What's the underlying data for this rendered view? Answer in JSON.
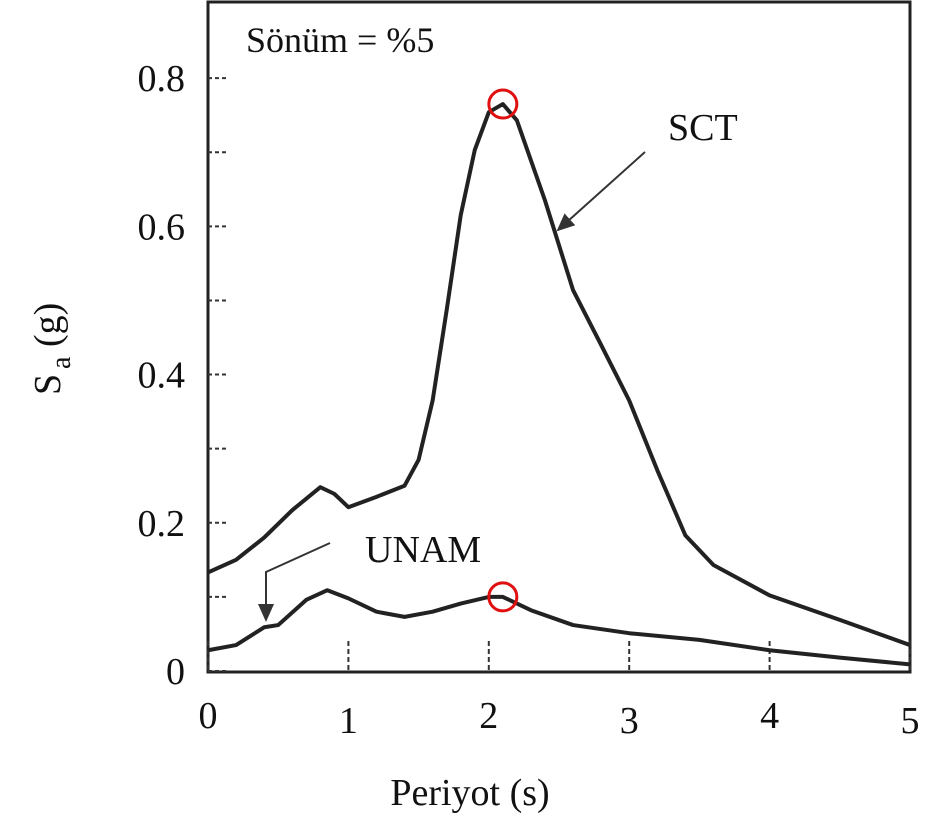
{
  "chart_data": {
    "type": "line",
    "x_label": "Periyot (s)",
    "y_label": {
      "text": "S",
      "subscript": "a",
      "unit": "(g)"
    },
    "annotations": [
      "Sönüm = %5"
    ],
    "xlim": [
      0,
      5
    ],
    "xticks": [
      0,
      1,
      2,
      3,
      4,
      5
    ],
    "ylim": [
      0,
      0.9
    ],
    "yticks": [
      0,
      0.2,
      0.4,
      0.6,
      0.8
    ],
    "yminor": [
      0.1,
      0.3,
      0.5,
      0.7
    ],
    "series": [
      {
        "name": "SCT",
        "color": "#222222",
        "label_color": "#1f3fc0",
        "x": [
          0,
          0.2,
          0.4,
          0.6,
          0.8,
          0.9,
          1.0,
          1.2,
          1.4,
          1.5,
          1.6,
          1.7,
          1.8,
          1.9,
          2.0,
          2.1,
          2.2,
          2.4,
          2.6,
          2.8,
          3.0,
          3.2,
          3.4,
          3.6,
          4.0,
          4.5,
          5.0
        ],
        "values": [
          0.133,
          0.15,
          0.18,
          0.217,
          0.248,
          0.239,
          0.221,
          0.235,
          0.25,
          0.285,
          0.365,
          0.487,
          0.615,
          0.703,
          0.754,
          0.765,
          0.743,
          0.635,
          0.514,
          0.44,
          0.365,
          0.271,
          0.183,
          0.143,
          0.102,
          0.069,
          0.035
        ],
        "highlight_index": 15
      },
      {
        "name": "UNAM",
        "color": "#222222",
        "label_color": "#1f3fc0",
        "x": [
          0,
          0.2,
          0.4,
          0.5,
          0.7,
          0.85,
          1.0,
          1.2,
          1.4,
          1.6,
          1.8,
          2.0,
          2.1,
          2.3,
          2.6,
          3.0,
          3.5,
          4.0,
          4.5,
          5.0
        ],
        "values": [
          0.028,
          0.035,
          0.059,
          0.062,
          0.096,
          0.109,
          0.098,
          0.08,
          0.073,
          0.08,
          0.091,
          0.1,
          0.1,
          0.082,
          0.062,
          0.051,
          0.042,
          0.028,
          0.018,
          0.009
        ],
        "highlight_index": 12
      }
    ],
    "highlight_color": "#e01010"
  }
}
